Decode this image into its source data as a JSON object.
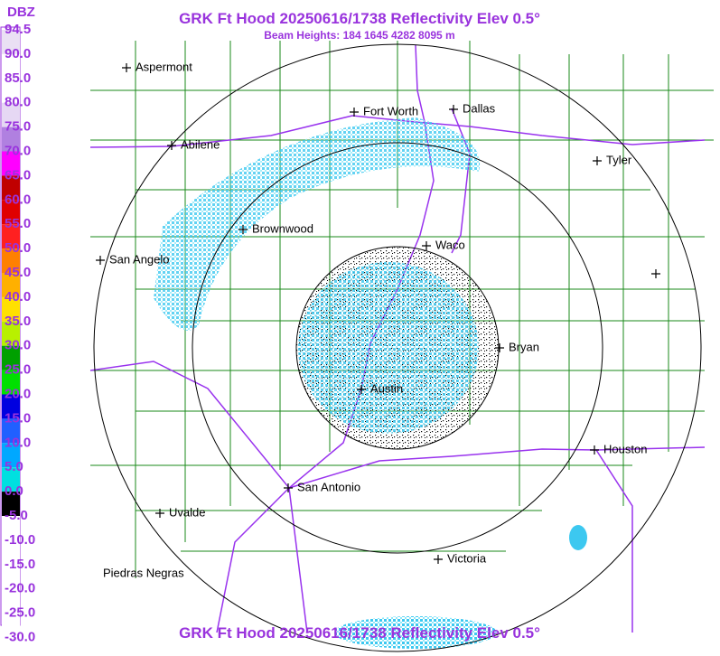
{
  "header": {
    "title": "GRK Ft Hood 20250616/1738 Reflectivity Elev 0.5°",
    "subtitle": "Beam Heights: 184 1645 4282 8095 m"
  },
  "legend": {
    "title": "DBZ",
    "labels": [
      "94.5",
      "90.0",
      "85.0",
      "80.0",
      "75.0",
      "70.0",
      "65.0",
      "60.0",
      "55.0",
      "50.0",
      "45.0",
      "40.0",
      "35.0",
      "30.0",
      "25.0",
      "20.0",
      "15.0",
      "10.0",
      "5.0",
      "0.0",
      "-5.0",
      "-10.0",
      "-15.0",
      "-20.0",
      "-25.0",
      "-30.0"
    ]
  },
  "cities": [
    "Aspermont",
    "Fort Worth",
    "Dallas",
    "Abilene",
    "Tyler",
    "Brownwood",
    "Waco",
    "San Angelo",
    "Bryan",
    "Austin",
    "Houston",
    "San Antonio",
    "Uvalde",
    "Victoria",
    "Piedras Negras"
  ],
  "footer": {
    "title": "GRK Ft Hood 20250616/1738 Reflectivity Elev 0.5°"
  }
}
